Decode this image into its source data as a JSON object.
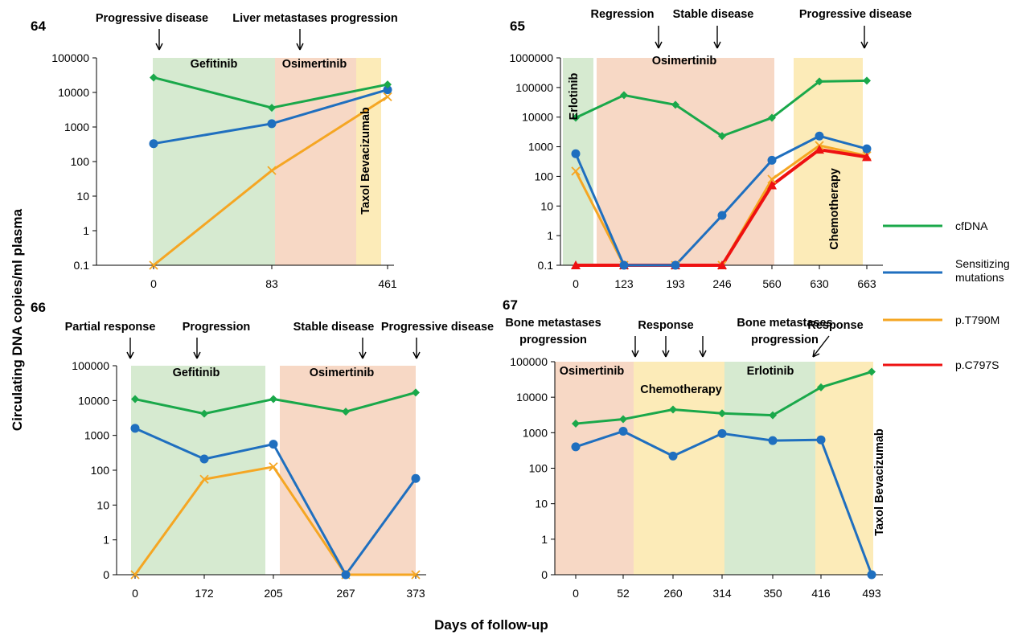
{
  "figure": {
    "ylabel": "Circulating DNA copies/ml plasma",
    "xlabel": "Days of follow-up"
  },
  "legend": [
    {
      "name": "cfDNA",
      "color": "#1aa84a"
    },
    {
      "name": "Sensitizing mutations",
      "color": "#1f6fbf"
    },
    {
      "name": "p.T790M",
      "color": "#f5a623"
    },
    {
      "name": "p.C797S",
      "color": "#ee1111"
    }
  ],
  "colors": {
    "green_region": "#d6ead0",
    "salmon_region": "#f7d8c5",
    "yellow_region": "#fcebb8"
  },
  "chart_data": [
    {
      "type": "line",
      "title": "64",
      "yscale": "log",
      "ylim": [
        0.1,
        100000
      ],
      "yticks": [
        "0.1",
        "1",
        "10",
        "100",
        "1000",
        "10000",
        "100000"
      ],
      "x": [
        "0",
        "83",
        "461"
      ],
      "regions": [
        {
          "label": "Gefitinib",
          "color": "green"
        },
        {
          "label": "Osimertinib",
          "color": "salmon"
        },
        {
          "label": "Taxol Bevacizumab",
          "color": "yellow"
        }
      ],
      "annotations": [
        "Progressive disease",
        "Liver metastases progression"
      ],
      "series": [
        {
          "name": "cfDNA",
          "values": [
            27000,
            3600,
            17000
          ]
        },
        {
          "name": "Sensitizing mutations",
          "values": [
            330,
            1250,
            12000
          ]
        },
        {
          "name": "p.T790M",
          "values": [
            0.1,
            55,
            7500
          ]
        }
      ]
    },
    {
      "type": "line",
      "title": "65",
      "yscale": "log",
      "ylim": [
        0.1,
        1000000
      ],
      "yticks": [
        "0.1",
        "1",
        "10",
        "100",
        "1000",
        "10000",
        "100000",
        "1000000"
      ],
      "x": [
        "0",
        "123",
        "193",
        "246",
        "560",
        "630",
        "663"
      ],
      "regions": [
        {
          "label": "Erlotinib",
          "color": "green"
        },
        {
          "label": "Osimertinib",
          "color": "salmon"
        },
        {
          "label": "Chemotherapy",
          "color": "yellow"
        }
      ],
      "annotations": [
        "Regression",
        "Stable disease",
        "Progressive disease"
      ],
      "series": [
        {
          "name": "cfDNA",
          "values": [
            9500,
            55000,
            26000,
            2300,
            9500,
            160000,
            170000
          ]
        },
        {
          "name": "Sensitizing mutations",
          "values": [
            580,
            0.1,
            0.1,
            4.8,
            350,
            2300,
            850
          ]
        },
        {
          "name": "p.T790M",
          "values": [
            150,
            0.1,
            0.1,
            0.1,
            80,
            1100,
            500
          ]
        },
        {
          "name": "p.C797S",
          "values": [
            0.1,
            0.1,
            0.1,
            0.1,
            50,
            800,
            450
          ]
        }
      ]
    },
    {
      "type": "line",
      "title": "66",
      "yscale": "log",
      "ylim": [
        0,
        100000
      ],
      "yticks": [
        "0",
        "1",
        "10",
        "100",
        "1000",
        "10000",
        "100000"
      ],
      "x": [
        "0",
        "172",
        "205",
        "267",
        "373"
      ],
      "regions": [
        {
          "label": "Gefitinib",
          "color": "green"
        },
        {
          "label": "Osimertinib",
          "color": "salmon"
        }
      ],
      "annotations": [
        "Partial response",
        "Progression",
        "Stable disease",
        "Progressive disease"
      ],
      "series": [
        {
          "name": "cfDNA",
          "values": [
            11000,
            4200,
            11000,
            4800,
            17000
          ]
        },
        {
          "name": "Sensitizing mutations",
          "values": [
            1600,
            210,
            560,
            0,
            58
          ]
        },
        {
          "name": "p.T790M",
          "values": [
            0,
            55,
            125,
            0,
            0
          ]
        }
      ]
    },
    {
      "type": "line",
      "title": "67",
      "yscale": "log",
      "ylim": [
        0,
        100000
      ],
      "yticks": [
        "0",
        "1",
        "10",
        "100",
        "1000",
        "10000",
        "100000"
      ],
      "x": [
        "0",
        "52",
        "260",
        "314",
        "350",
        "416",
        "493"
      ],
      "regions": [
        {
          "label": "Osimertinib",
          "color": "salmon"
        },
        {
          "label": "Chemotherapy",
          "color": "yellow"
        },
        {
          "label": "Erlotinib",
          "color": "green"
        },
        {
          "label": "Taxol Bevacizumab",
          "color": "yellow"
        }
      ],
      "annotations": [
        "Bone metastases progression",
        "Response",
        "Bone metastases progression",
        "Response"
      ],
      "series": [
        {
          "name": "cfDNA",
          "values": [
            1800,
            2400,
            4500,
            3500,
            3100,
            19000,
            52000
          ]
        },
        {
          "name": "Sensitizing mutations",
          "values": [
            400,
            1100,
            220,
            950,
            600,
            630,
            0
          ]
        }
      ]
    }
  ]
}
